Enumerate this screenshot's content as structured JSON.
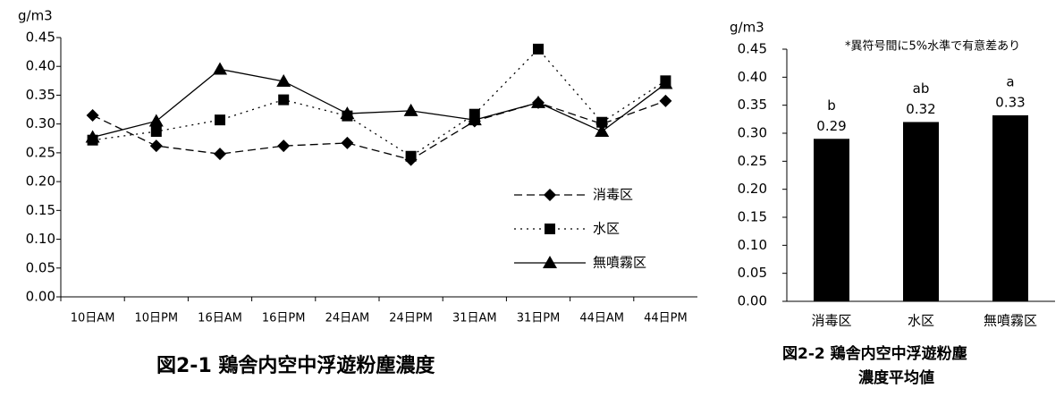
{
  "chart_data": [
    {
      "type": "line",
      "y_label": "g/m3",
      "title": "図2-1 鶏舎内空中浮遊粉塵濃度",
      "categories": [
        "10日AM",
        "10日PM",
        "16日AM",
        "16日PM",
        "24日AM",
        "24日PM",
        "31日AM",
        "31日PM",
        "44日AM",
        "44日PM"
      ],
      "series": [
        {
          "name": "消毒区",
          "color": "#000000",
          "marker": "diamond",
          "dash": "dashed",
          "values": [
            0.315,
            0.262,
            0.248,
            0.262,
            0.267,
            0.238,
            0.305,
            0.337,
            0.3,
            0.34
          ]
        },
        {
          "name": "水区",
          "color": "#000000",
          "marker": "square",
          "dash": "dotted",
          "values": [
            0.272,
            0.287,
            0.307,
            0.342,
            0.314,
            0.244,
            0.317,
            0.43,
            0.303,
            0.375
          ]
        },
        {
          "name": "無噴霧区",
          "color": "#000000",
          "marker": "triangle",
          "dash": "solid",
          "values": [
            0.277,
            0.305,
            0.395,
            0.374,
            0.318,
            0.323,
            0.307,
            0.337,
            0.287,
            0.37
          ]
        }
      ],
      "ylim": [
        0,
        0.45
      ],
      "yticks": [
        {
          "value": 0,
          "label": "0.00"
        },
        {
          "value": 0.05,
          "label": "0.05"
        },
        {
          "value": 0.1,
          "label": "0.10"
        },
        {
          "value": 0.15,
          "label": "0.15"
        },
        {
          "value": 0.2,
          "label": "0.20"
        },
        {
          "value": 0.25,
          "label": "0.25"
        },
        {
          "value": 0.3,
          "label": "0.30"
        },
        {
          "value": 0.35,
          "label": "0.35"
        },
        {
          "value": 0.4,
          "label": "0.40"
        },
        {
          "value": 0.45,
          "label": "0.45"
        }
      ],
      "legend": "lower right"
    },
    {
      "type": "bar",
      "y_label": "g/m3",
      "title": [
        "図2-2 鶏舎内空中浮遊粉塵",
        "濃度平均値"
      ],
      "note": "*異符号間に5%水準で有意差あり",
      "categories": [
        "消毒区",
        "水区",
        "無噴霧区"
      ],
      "values": [
        0.29,
        0.32,
        0.332
      ],
      "value_labels": [
        "0.29",
        "0.32",
        "0.33"
      ],
      "annotations": [
        "b",
        "ab",
        "a"
      ],
      "color": "#000000",
      "ylim": [
        0,
        0.45
      ],
      "yticks": [
        {
          "value": 0,
          "label": "0.00"
        },
        {
          "value": 0.05,
          "label": "0.05"
        },
        {
          "value": 0.1,
          "label": "0.10"
        },
        {
          "value": 0.15,
          "label": "0.15"
        },
        {
          "value": 0.2,
          "label": "0.20"
        },
        {
          "value": 0.25,
          "label": "0.25"
        },
        {
          "value": 0.3,
          "label": "0.30"
        },
        {
          "value": 0.35,
          "label": "0.35"
        },
        {
          "value": 0.4,
          "label": "0.40"
        },
        {
          "value": 0.45,
          "label": "0.45"
        }
      ]
    }
  ]
}
